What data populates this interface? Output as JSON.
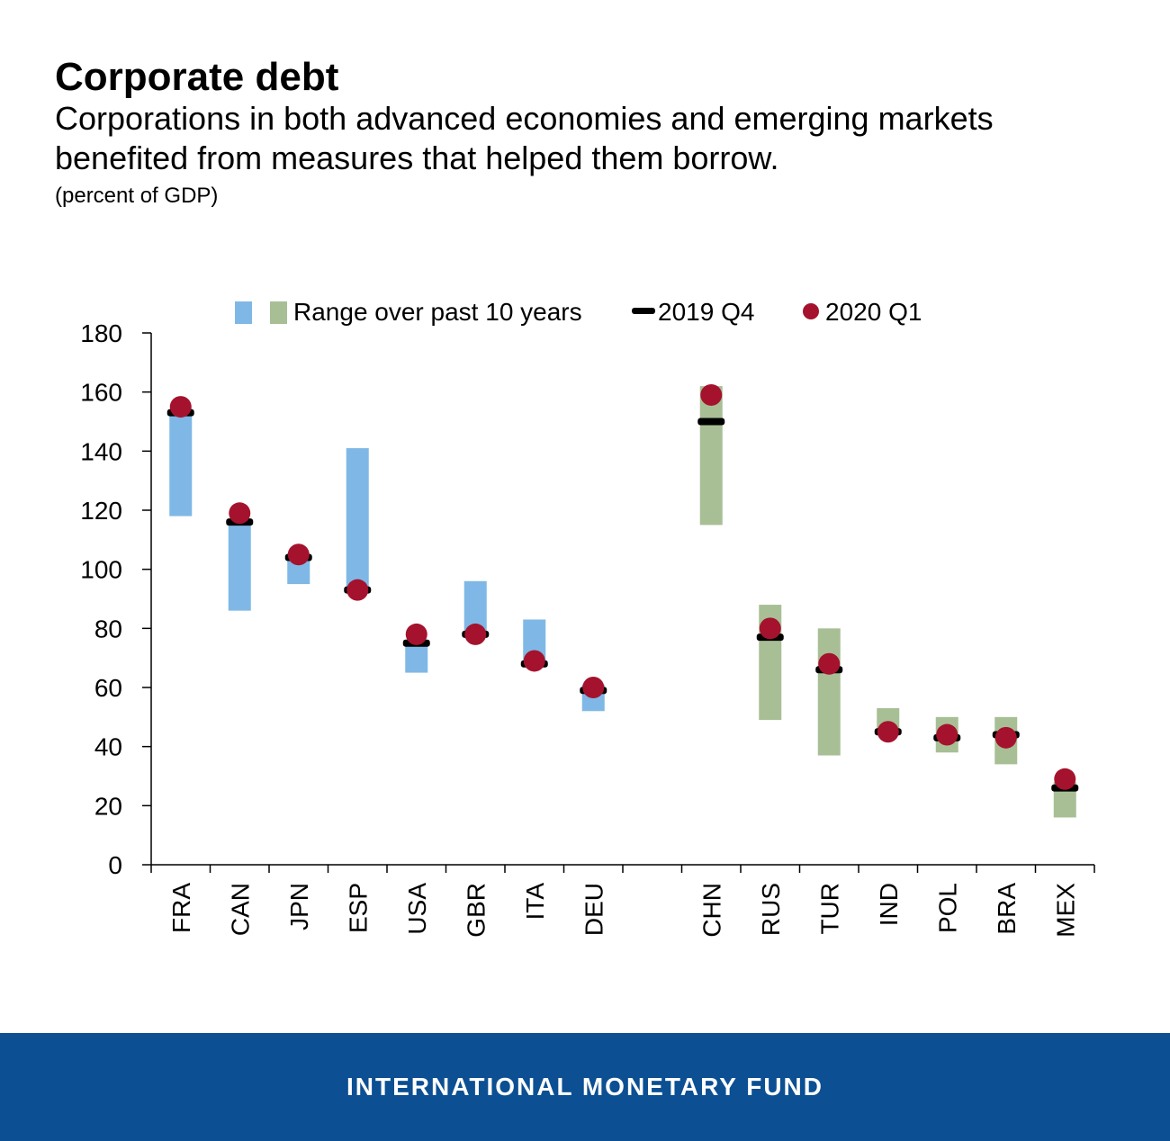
{
  "header": {
    "title": "Corporate debt",
    "subtitle": "Corporations in both advanced economies and emerging markets benefited from measures that helped them borrow.",
    "unit": "(percent of GDP)"
  },
  "footer": {
    "org": "INTERNATIONAL MONETARY FUND"
  },
  "colors": {
    "advanced_range": "#7fb8e6",
    "emerging_range": "#a8bf96",
    "q4_marker": "#000000",
    "q1_marker": "#a5122d",
    "footer_bg": "#0c4f92"
  },
  "chart_data": {
    "type": "range-dot",
    "ylim": [
      0,
      180
    ],
    "yticks": [
      0,
      20,
      40,
      60,
      80,
      100,
      120,
      140,
      160,
      180
    ],
    "grid": false,
    "legend": {
      "position": "top",
      "range_label": "Range over past 10 years",
      "q4_label": "2019 Q4",
      "q1_label": "2020 Q1"
    },
    "categories": [
      "FRA",
      "CAN",
      "JPN",
      "ESP",
      "USA",
      "GBR",
      "ITA",
      "DEU",
      "",
      "CHN",
      "RUS",
      "TUR",
      "IND",
      "POL",
      "BRA",
      "MEX"
    ],
    "group": [
      "advanced",
      "advanced",
      "advanced",
      "advanced",
      "advanced",
      "advanced",
      "advanced",
      "advanced",
      null,
      "emerging",
      "emerging",
      "emerging",
      "emerging",
      "emerging",
      "emerging",
      "emerging"
    ],
    "range_min": [
      118,
      86,
      95,
      92,
      65,
      77,
      68,
      52,
      null,
      115,
      49,
      37,
      44,
      38,
      34,
      16
    ],
    "range_max": [
      154,
      117,
      105,
      141,
      76,
      96,
      83,
      61,
      null,
      162,
      88,
      80,
      53,
      50,
      50,
      28
    ],
    "q4_2019": [
      153,
      116,
      104,
      93,
      75,
      78,
      68,
      59,
      null,
      150,
      77,
      66,
      45,
      43,
      44,
      26
    ],
    "q1_2020": [
      155,
      119,
      105,
      93,
      78,
      78,
      69,
      60,
      null,
      159,
      80,
      68,
      45,
      44,
      43,
      29
    ]
  }
}
